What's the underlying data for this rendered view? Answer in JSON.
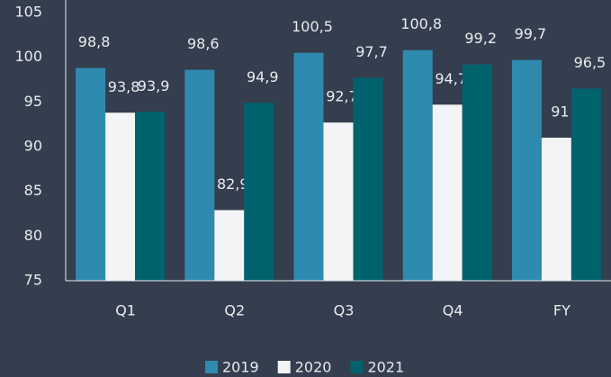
{
  "chart_data": {
    "type": "bar",
    "categories": [
      "Q1",
      "Q2",
      "Q3",
      "Q4",
      "FY"
    ],
    "series": [
      {
        "name": "2019",
        "color": "#2f8ab0",
        "values": [
          98.8,
          98.6,
          100.5,
          100.8,
          99.7
        ],
        "value_labels": [
          "98,8",
          "98,6",
          "100,5",
          "100,8",
          "99,7"
        ]
      },
      {
        "name": "2020",
        "color": "#f3f4f5",
        "values": [
          93.8,
          82.9,
          92.7,
          94.7,
          91
        ],
        "value_labels": [
          "93,8",
          "82,9",
          "92,7",
          "94,7",
          "91"
        ]
      },
      {
        "name": "2021",
        "color": "#00626d",
        "values": [
          93.9,
          94.9,
          97.7,
          99.2,
          96.5
        ],
        "value_labels": [
          "93,9",
          "94,9",
          "97,7",
          "99,2",
          "96,5"
        ]
      }
    ],
    "ylim": [
      75,
      105
    ],
    "yticks": [
      75,
      80,
      85,
      90,
      95,
      100,
      105
    ],
    "grid": false,
    "legend": "bottom"
  }
}
